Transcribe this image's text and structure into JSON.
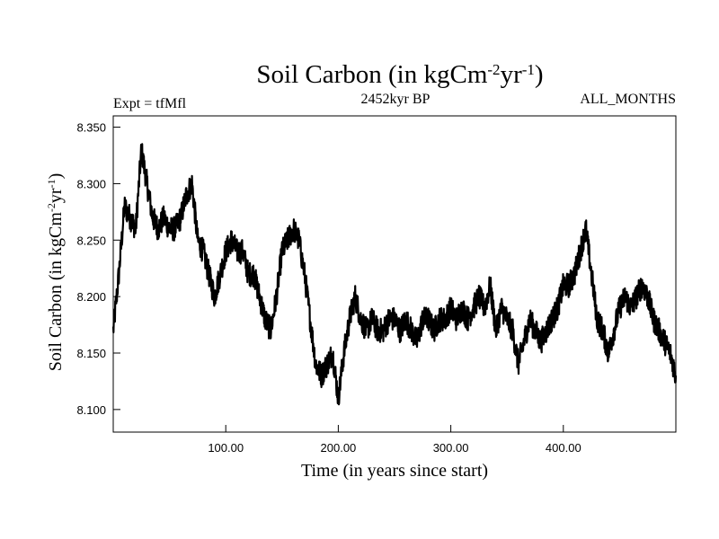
{
  "chart_data": {
    "type": "line",
    "title": {
      "base": "Soil Carbon (in kgCm",
      "sup1": "-2",
      "mid": "yr",
      "sup2": "-1",
      "end": ")"
    },
    "subtitle_left": "Expt = tfMfl",
    "subtitle_center": "2452kyr BP",
    "subtitle_right": "ALL_MONTHS",
    "xlabel": "Time (in years since start)",
    "ylabel": {
      "base": "Soil Carbon (in kgCm",
      "sup1": "-2",
      "mid": "yr",
      "sup2": "-1",
      "end": ")"
    },
    "xlim": [
      0,
      500
    ],
    "ylim": [
      8.08,
      8.36
    ],
    "xticks": [
      100,
      200,
      300,
      400
    ],
    "xtick_labels": [
      "100.00",
      "200.00",
      "300.00",
      "400.00"
    ],
    "yticks": [
      8.1,
      8.15,
      8.2,
      8.25,
      8.3,
      8.35
    ],
    "ytick_labels": [
      "8.100",
      "8.150",
      "8.200",
      "8.250",
      "8.300",
      "8.350"
    ],
    "grid": false,
    "line_color": "#000000",
    "series": [
      {
        "x": [
          0,
          5,
          10,
          15,
          20,
          25,
          30,
          35,
          40,
          45,
          50,
          55,
          60,
          65,
          70,
          75,
          80,
          85,
          90,
          95,
          100,
          105,
          110,
          115,
          120,
          125,
          130,
          135,
          140,
          145,
          150,
          155,
          160,
          165,
          170,
          175,
          180,
          185,
          190,
          195,
          200,
          205,
          210,
          215,
          220,
          225,
          230,
          235,
          240,
          245,
          250,
          255,
          260,
          265,
          270,
          275,
          280,
          285,
          290,
          295,
          300,
          305,
          310,
          315,
          320,
          325,
          330,
          335,
          340,
          345,
          350,
          355,
          360,
          365,
          370,
          375,
          380,
          385,
          390,
          395,
          400,
          405,
          410,
          415,
          420,
          425,
          430,
          435,
          440,
          445,
          450,
          455,
          460,
          465,
          470,
          475,
          480,
          485,
          490,
          495,
          500
        ],
        "values": [
          8.17,
          8.22,
          8.28,
          8.27,
          8.26,
          8.33,
          8.3,
          8.27,
          8.26,
          8.27,
          8.26,
          8.26,
          8.27,
          8.29,
          8.3,
          8.25,
          8.24,
          8.22,
          8.2,
          8.22,
          8.24,
          8.25,
          8.24,
          8.24,
          8.22,
          8.22,
          8.2,
          8.18,
          8.17,
          8.2,
          8.24,
          8.25,
          8.26,
          8.25,
          8.22,
          8.18,
          8.14,
          8.13,
          8.14,
          8.15,
          8.11,
          8.15,
          8.18,
          8.2,
          8.18,
          8.17,
          8.18,
          8.17,
          8.17,
          8.18,
          8.18,
          8.17,
          8.18,
          8.17,
          8.16,
          8.18,
          8.18,
          8.17,
          8.18,
          8.18,
          8.19,
          8.18,
          8.19,
          8.18,
          8.19,
          8.2,
          8.19,
          8.21,
          8.17,
          8.19,
          8.18,
          8.17,
          8.14,
          8.16,
          8.18,
          8.17,
          8.16,
          8.17,
          8.18,
          8.19,
          8.21,
          8.21,
          8.22,
          8.24,
          8.26,
          8.22,
          8.18,
          8.17,
          8.15,
          8.17,
          8.19,
          8.2,
          8.19,
          8.2,
          8.21,
          8.2,
          8.18,
          8.17,
          8.16,
          8.15,
          8.13
        ]
      }
    ]
  }
}
